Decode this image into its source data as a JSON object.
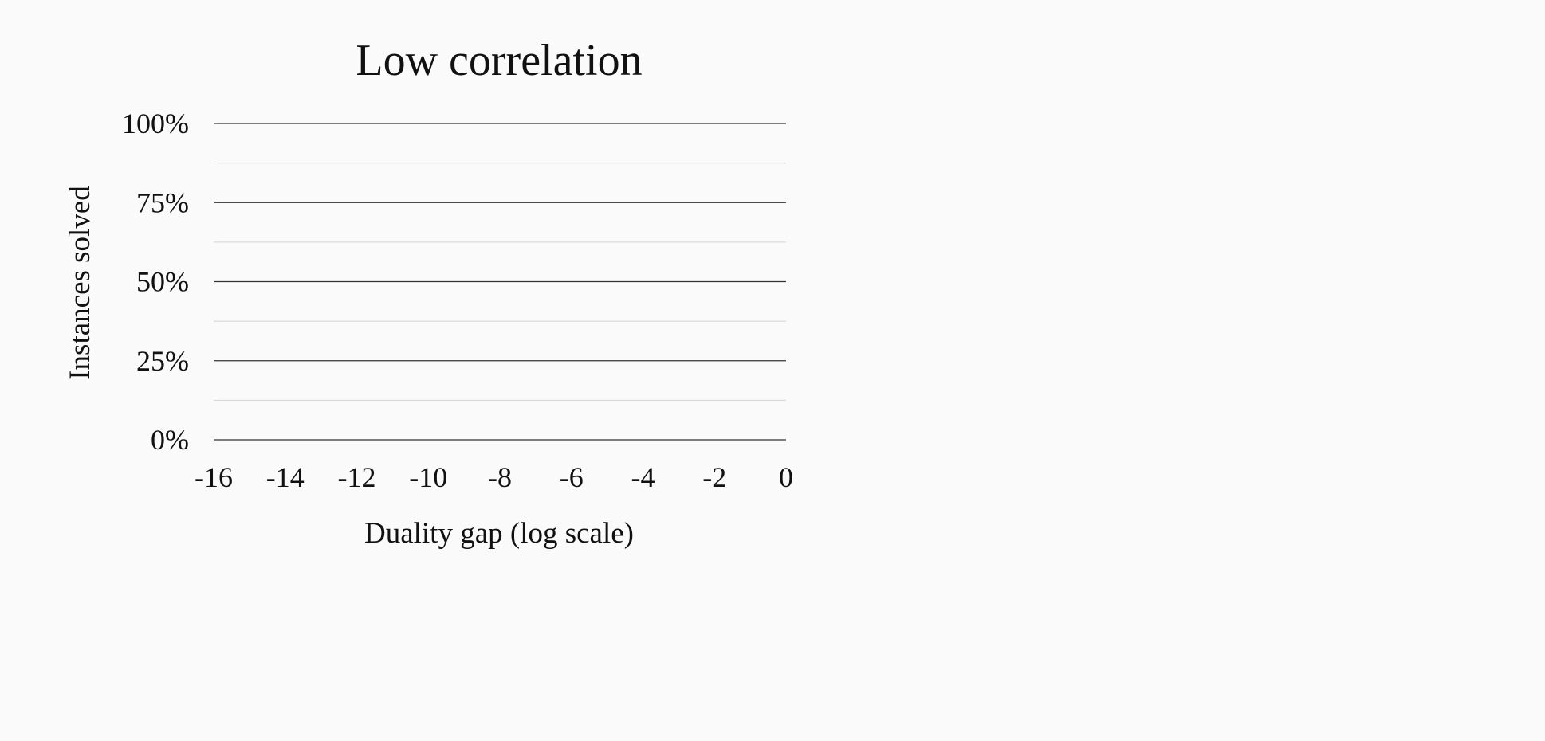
{
  "chart_data": {
    "type": "line",
    "title": "Low correlation",
    "xlabel": "Duality gap (log scale)",
    "ylabel": "Instances solved",
    "xlim": [
      -16,
      0
    ],
    "ylim": [
      0,
      100
    ],
    "x_ticks": [
      -16,
      -14,
      -12,
      -10,
      -8,
      -6,
      -4,
      -2,
      0
    ],
    "x_tick_labels": [
      "-16",
      "-14",
      "-12",
      "-10",
      "-8",
      "-6",
      "-4",
      "-2",
      "0"
    ],
    "y_ticks": [
      0,
      25,
      50,
      75,
      100
    ],
    "y_tick_labels": [
      "0%",
      "25%",
      "50%",
      "75%",
      "100%"
    ],
    "y_minor_ticks": [
      12.5,
      37.5,
      62.5,
      87.5
    ],
    "grid": true,
    "series": [],
    "colors": {
      "major_grid": "#333333",
      "minor_grid": "#d4d4d4",
      "text": "#111111",
      "background": "#fafafa"
    }
  }
}
